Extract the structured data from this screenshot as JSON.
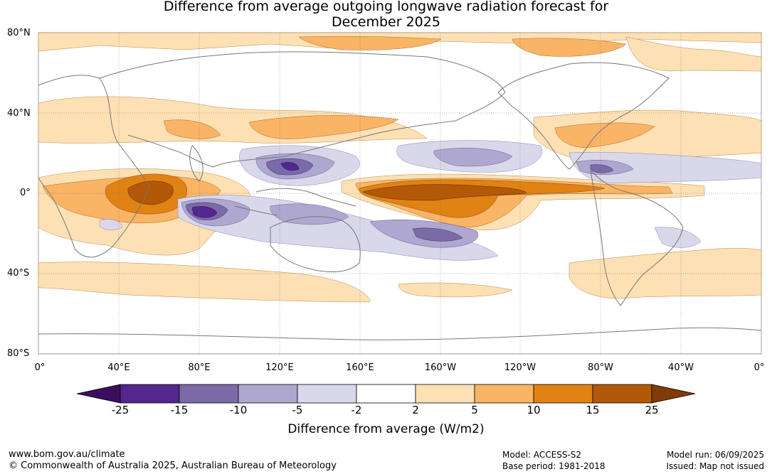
{
  "title": {
    "line1": "Difference from average outgoing longwave radiation forecast for",
    "line2": "December 2025"
  },
  "map": {
    "lat_labels": [
      "80°N",
      "40°N",
      "0°",
      "40°S",
      "80°S"
    ],
    "lon_labels": [
      "0°",
      "40°E",
      "80°E",
      "120°E",
      "160°E",
      "160°W",
      "120°W",
      "80°W",
      "40°W",
      "0°"
    ]
  },
  "colorbar": {
    "title": "Difference from average (W/m2)",
    "ticks": [
      "-25",
      "-15",
      "-10",
      "-5",
      "-2",
      "2",
      "5",
      "10",
      "15",
      "25"
    ],
    "colors": [
      "#3b0f5e",
      "#54278f",
      "#7b6aa8",
      "#aea7cf",
      "#d8d8ea",
      "#ffffff",
      "#fde0b4",
      "#f9b466",
      "#e08214",
      "#b35806",
      "#7f3b08"
    ]
  },
  "footer": {
    "url": "www.bom.gov.au/climate",
    "copyright": "© Commonwealth of Australia 2025, Australian Bureau of Meteorology",
    "model": "Model: ACCESS-S2",
    "base_period": "Base period: 1981-2018",
    "model_run": "Model run: 06/09/2025",
    "issued": "Issued: Map not issued"
  }
}
